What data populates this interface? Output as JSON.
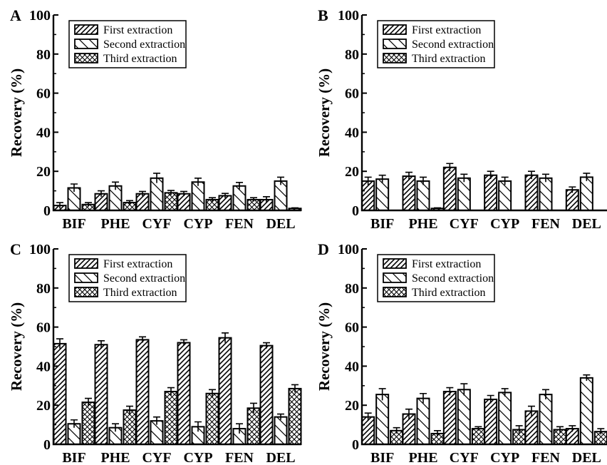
{
  "legend_labels": [
    "First extraction",
    "Second extraction",
    "Third extraction"
  ],
  "colors": {
    "axis": "#000000",
    "bar_fill": "#ffffff",
    "hatch": "#000000"
  },
  "chart_data": [
    {
      "type": "bar",
      "panel": "A",
      "ylabel": "Recovery (%)",
      "ylim": [
        0,
        100
      ],
      "yticks": [
        0,
        20,
        40,
        60,
        80,
        100
      ],
      "categories": [
        "BIF",
        "PHE",
        "CYF",
        "CYP",
        "FEN",
        "DEL"
      ],
      "legend_position": "top-left",
      "series": [
        {
          "name": "First extraction",
          "pattern": "diagonal",
          "values": [
            2.5,
            8.5,
            8.5,
            8.5,
            7.5,
            5.5
          ],
          "errors": [
            1.5,
            1.5,
            1.2,
            1.2,
            1.2,
            1.5
          ]
        },
        {
          "name": "Second extraction",
          "pattern": "back-diagonal",
          "values": [
            11.5,
            12.5,
            16.5,
            14.5,
            12.5,
            15.0
          ],
          "errors": [
            2.0,
            2.0,
            2.5,
            2.0,
            1.8,
            2.0
          ]
        },
        {
          "name": "Third extraction",
          "pattern": "crosshatch",
          "values": [
            3.0,
            4.0,
            9.0,
            5.5,
            5.5,
            1.0
          ],
          "errors": [
            1.0,
            1.0,
            1.2,
            1.0,
            1.0,
            0.3
          ]
        }
      ]
    },
    {
      "type": "bar",
      "panel": "B",
      "ylabel": "Recovery (%)",
      "ylim": [
        0,
        100
      ],
      "yticks": [
        0,
        20,
        40,
        60,
        80,
        100
      ],
      "categories": [
        "BIF",
        "PHE",
        "CYF",
        "CYP",
        "FEN",
        "DEL"
      ],
      "legend_position": "top-left",
      "series": [
        {
          "name": "First extraction",
          "pattern": "diagonal",
          "values": [
            15.0,
            17.5,
            22.0,
            18.0,
            18.0,
            10.5
          ],
          "errors": [
            2.0,
            2.0,
            2.0,
            2.0,
            2.0,
            1.5
          ]
        },
        {
          "name": "Second extraction",
          "pattern": "back-diagonal",
          "values": [
            16.0,
            15.0,
            16.5,
            15.0,
            16.5,
            17.0
          ],
          "errors": [
            2.0,
            2.0,
            2.0,
            2.0,
            2.0,
            2.0
          ]
        },
        {
          "name": "Third extraction",
          "pattern": "crosshatch",
          "values": [
            0,
            1.0,
            0,
            0,
            0,
            0
          ],
          "errors": [
            0,
            0.3,
            0,
            0,
            0,
            0
          ]
        }
      ]
    },
    {
      "type": "bar",
      "panel": "C",
      "ylabel": "Recovery (%)",
      "ylim": [
        0,
        100
      ],
      "yticks": [
        0,
        20,
        40,
        60,
        80,
        100
      ],
      "categories": [
        "BIF",
        "PHE",
        "CYF",
        "CYP",
        "FEN",
        "DEL"
      ],
      "legend_position": "top-left",
      "series": [
        {
          "name": "First extraction",
          "pattern": "diagonal",
          "values": [
            51.5,
            51.0,
            53.5,
            52.0,
            54.5,
            50.5
          ],
          "errors": [
            2.5,
            2.0,
            1.5,
            1.5,
            2.5,
            1.5
          ]
        },
        {
          "name": "Second extraction",
          "pattern": "back-diagonal",
          "values": [
            10.5,
            8.5,
            12.0,
            9.0,
            8.0,
            14.0
          ],
          "errors": [
            2.0,
            2.0,
            2.0,
            2.5,
            2.5,
            1.5
          ]
        },
        {
          "name": "Third extraction",
          "pattern": "crosshatch",
          "values": [
            21.5,
            17.5,
            27.0,
            26.0,
            18.5,
            28.5
          ],
          "errors": [
            2.0,
            2.0,
            2.0,
            2.0,
            2.5,
            2.0
          ]
        }
      ]
    },
    {
      "type": "bar",
      "panel": "D",
      "ylabel": "Recovery (%)",
      "ylim": [
        0,
        100
      ],
      "yticks": [
        0,
        20,
        40,
        60,
        80,
        100
      ],
      "categories": [
        "BIF",
        "PHE",
        "CYF",
        "CYP",
        "FEN",
        "DEL"
      ],
      "legend_position": "top-left",
      "series": [
        {
          "name": "First extraction",
          "pattern": "diagonal",
          "values": [
            14.0,
            15.5,
            27.0,
            23.0,
            17.0,
            8.0
          ],
          "errors": [
            2.0,
            2.5,
            2.0,
            2.0,
            2.5,
            1.5
          ]
        },
        {
          "name": "Second extraction",
          "pattern": "back-diagonal",
          "values": [
            25.5,
            23.5,
            28.0,
            26.5,
            25.5,
            34.0
          ],
          "errors": [
            3.0,
            2.5,
            3.0,
            2.0,
            2.5,
            1.5
          ]
        },
        {
          "name": "Third extraction",
          "pattern": "crosshatch",
          "values": [
            7.0,
            5.5,
            8.0,
            7.5,
            7.5,
            6.5
          ],
          "errors": [
            1.5,
            1.5,
            1.0,
            2.0,
            1.5,
            1.5
          ]
        }
      ]
    }
  ]
}
